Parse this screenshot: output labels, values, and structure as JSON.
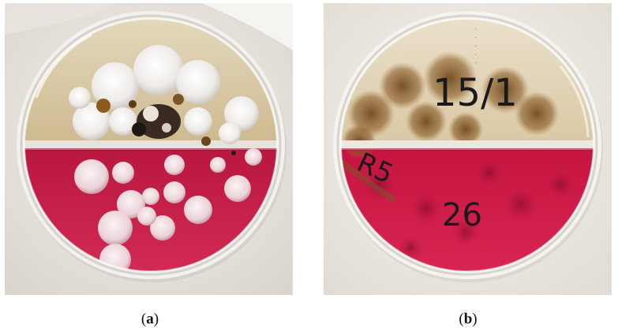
{
  "panels": [
    {
      "caption_open": "(",
      "caption_letter": "a",
      "caption_close": ")"
    },
    {
      "caption_open": "(",
      "caption_letter": "b",
      "caption_close": ")",
      "handwriting_top": "15/1",
      "handwriting_left": "R5",
      "handwriting_bottom": "26"
    }
  ],
  "colors": {
    "agar_cream": "#d9c9a3",
    "agar_red": "#d0204a",
    "colony_white": "#f2eeea",
    "colony_pink": "#efd6dc",
    "colony_brown": "#7a5628",
    "marker_black": "#1a1a1a",
    "background_cloth": "#eeebe6"
  }
}
